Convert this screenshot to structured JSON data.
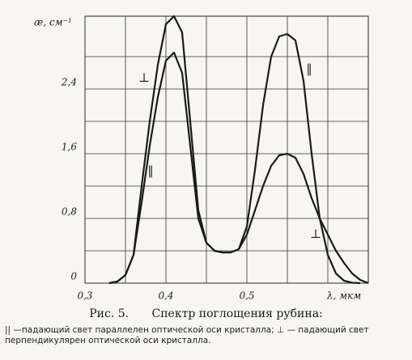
{
  "chart_data": {
    "type": "line",
    "ylabel": "æ, см⁻¹",
    "xlabel": "λ, мкм",
    "x": [
      0.33,
      0.34,
      0.35,
      0.36,
      0.37,
      0.38,
      0.39,
      0.4,
      0.41,
      0.42,
      0.43,
      0.44,
      0.45,
      0.46,
      0.47,
      0.48,
      0.49,
      0.5,
      0.51,
      0.52,
      0.53,
      0.54,
      0.55,
      0.56,
      0.57,
      0.58,
      0.59,
      0.6,
      0.61,
      0.62,
      0.63,
      0.64,
      0.65
    ],
    "series": [
      {
        "name": "‖",
        "color": "#1a1a1a",
        "values": [
          0,
          0.02,
          0.1,
          0.35,
          1.2,
          2.0,
          2.7,
          3.2,
          3.3,
          3.1,
          2.0,
          0.9,
          0.5,
          0.4,
          0.38,
          0.38,
          0.42,
          0.7,
          1.4,
          2.2,
          2.8,
          3.05,
          3.08,
          3.0,
          2.5,
          1.6,
          0.8,
          0.35,
          0.12,
          0.03,
          0.005,
          0,
          null
        ]
      },
      {
        "name": "⊥",
        "color": "#1a1a1a",
        "values": [
          0,
          0.02,
          0.1,
          0.35,
          1.0,
          1.7,
          2.3,
          2.75,
          2.85,
          2.6,
          1.7,
          0.8,
          0.5,
          0.4,
          0.38,
          0.38,
          0.42,
          0.6,
          0.9,
          1.2,
          1.45,
          1.58,
          1.6,
          1.55,
          1.35,
          1.05,
          0.8,
          0.6,
          0.4,
          0.25,
          0.12,
          0.04,
          0
        ]
      }
    ],
    "xlim": [
      0.3,
      0.65
    ],
    "ylim": [
      0,
      3.3
    ],
    "xticks": [
      {
        "value": 0.3,
        "label": "0,3"
      },
      {
        "value": 0.4,
        "label": "0,4"
      },
      {
        "value": 0.5,
        "label": "0,5"
      }
    ],
    "xgrid": [
      0.35,
      0.45,
      0.55,
      0.6
    ],
    "yticks": [
      0,
      {
        "value": 0.8,
        "label": "0,8"
      },
      {
        "value": 1.6,
        "label": "1,6"
      },
      {
        "value": 2.4,
        "label": "2,4"
      }
    ],
    "ygrid": [
      0.4,
      1.2,
      2.0,
      2.8
    ],
    "grid": true
  },
  "caption": {
    "figure": "Рис. 5.",
    "title": "Спектр поглощения рубина:",
    "text": "|| —падающий свет параллелен оптической оси кристалла; ⊥ — падающий свет перпендикулярен оптической оси кристалла."
  }
}
